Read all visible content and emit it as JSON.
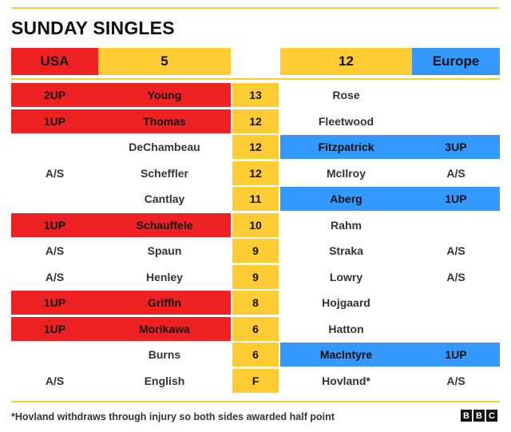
{
  "title": "SUNDAY SINGLES",
  "header": {
    "usa_label": "USA",
    "usa_score": "5",
    "europe_score": "12",
    "europe_label": "Europe"
  },
  "rows": [
    {
      "usa_result": "2UP",
      "usa_player": "Young",
      "match": "13",
      "europe_player": "Rose",
      "europe_result": "",
      "winner": "usa"
    },
    {
      "usa_result": "1UP",
      "usa_player": "Thomas",
      "match": "12",
      "europe_player": "Fleetwood",
      "europe_result": "",
      "winner": "usa"
    },
    {
      "usa_result": "",
      "usa_player": "DeChambeau",
      "match": "12",
      "europe_player": "Fitzpatrick",
      "europe_result": "3UP",
      "winner": "europe"
    },
    {
      "usa_result": "A/S",
      "usa_player": "Scheffler",
      "match": "12",
      "europe_player": "McIlroy",
      "europe_result": "A/S",
      "winner": "halved"
    },
    {
      "usa_result": "",
      "usa_player": "Cantlay",
      "match": "11",
      "europe_player": "Aberg",
      "europe_result": "1UP",
      "winner": "europe"
    },
    {
      "usa_result": "1UP",
      "usa_player": "Schauffele",
      "match": "10",
      "europe_player": "Rahm",
      "europe_result": "",
      "winner": "usa"
    },
    {
      "usa_result": "A/S",
      "usa_player": "Spaun",
      "match": "9",
      "europe_player": "Straka",
      "europe_result": "A/S",
      "winner": "halved"
    },
    {
      "usa_result": "A/S",
      "usa_player": "Henley",
      "match": "9",
      "europe_player": "Lowry",
      "europe_result": "A/S",
      "winner": "halved"
    },
    {
      "usa_result": "1UP",
      "usa_player": "Griffin",
      "match": "8",
      "europe_player": "Hojgaard",
      "europe_result": "",
      "winner": "usa"
    },
    {
      "usa_result": "1UP",
      "usa_player": "Morikawa",
      "match": "6",
      "europe_player": "Hatton",
      "europe_result": "",
      "winner": "usa"
    },
    {
      "usa_result": "",
      "usa_player": "Burns",
      "match": "6",
      "europe_player": "MacIntyre",
      "europe_result": "1UP",
      "winner": "europe"
    },
    {
      "usa_result": "A/S",
      "usa_player": "English",
      "match": "F",
      "europe_player": "Hovland*",
      "europe_result": "A/S",
      "winner": "halved"
    }
  ],
  "footnote": "*Hovland withdraws through injury so both sides awarded half point",
  "logo": [
    "B",
    "B",
    "C"
  ],
  "colors": {
    "usa": "#ee2222",
    "europe": "#3399ff",
    "accent": "#ffcc33"
  }
}
